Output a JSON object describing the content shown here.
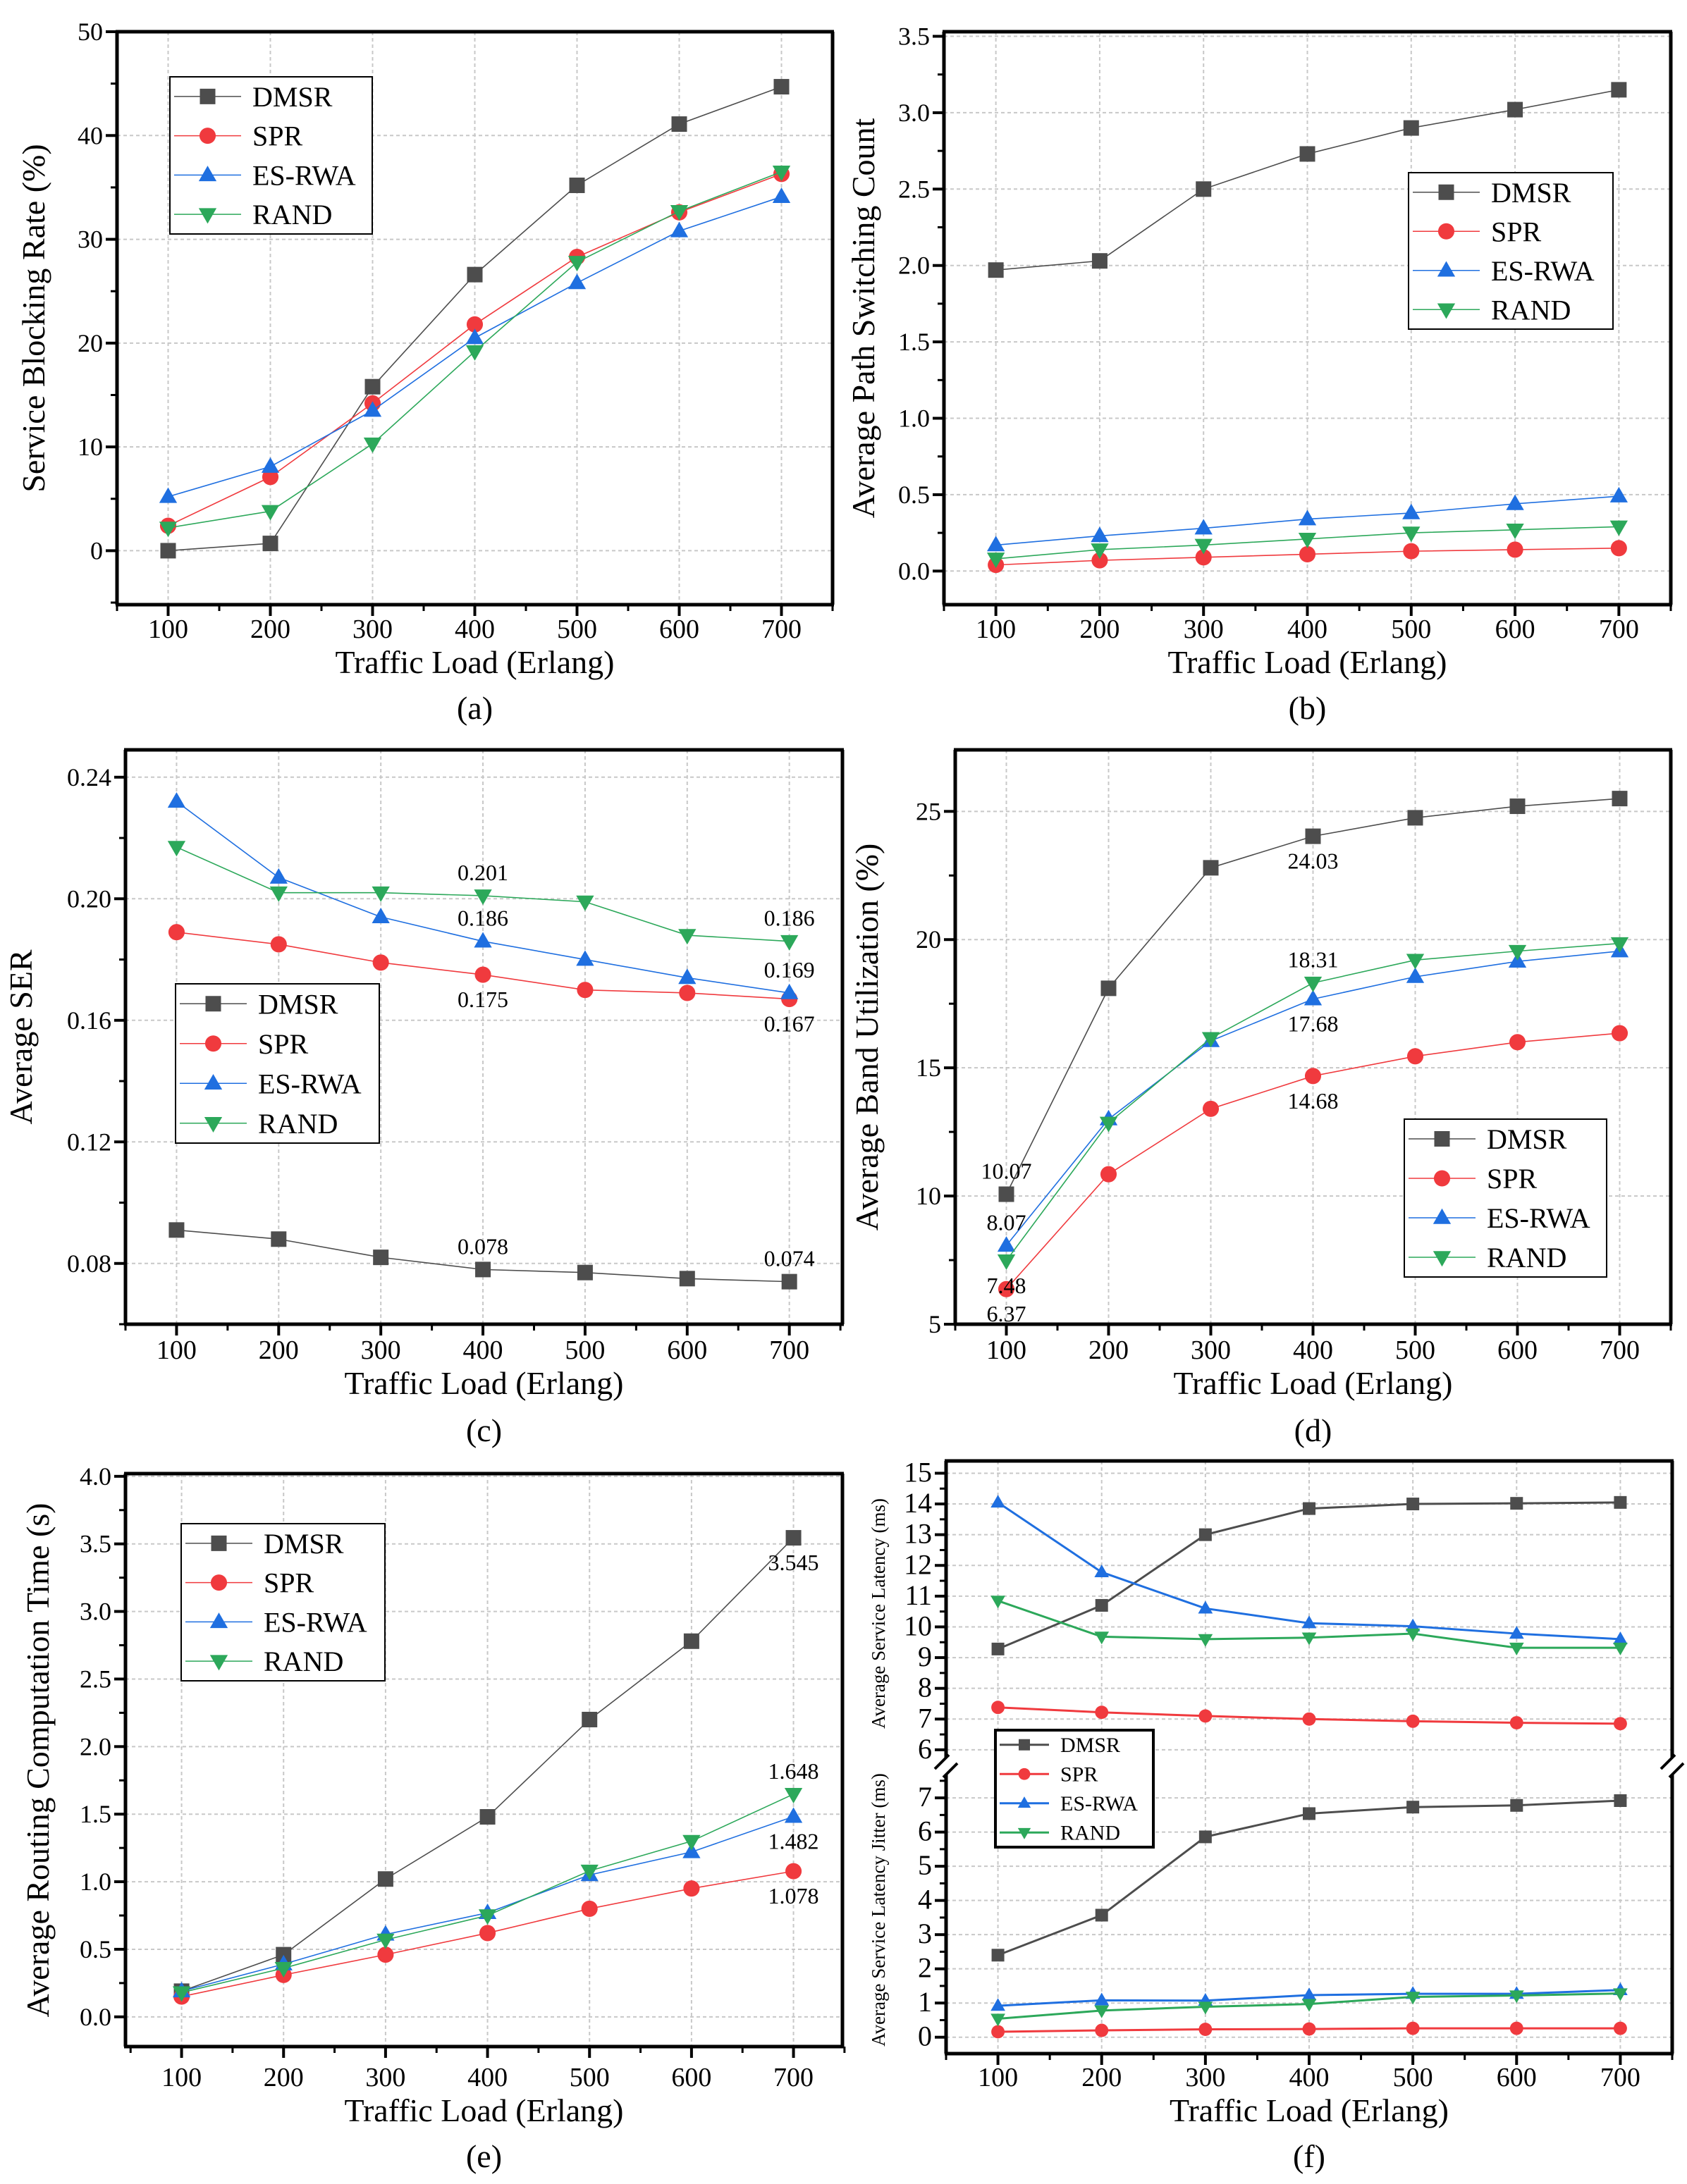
{
  "chart_data": [
    {
      "panel": "a",
      "type": "line",
      "caption": "(a)",
      "xlabel": "Traffic Load (Erlang)",
      "ylabel": "Service Blocking Rate (%)",
      "x": [
        100,
        200,
        300,
        400,
        500,
        600,
        700
      ],
      "xticks": [
        "100",
        "200",
        "300",
        "400",
        "500",
        "600",
        "700"
      ],
      "xlim": [
        50,
        750
      ],
      "ylim": [
        -5.2,
        50
      ],
      "yticks": [
        "0",
        "10",
        "20",
        "30",
        "40",
        "50"
      ],
      "grid": true,
      "legend": "top-left",
      "series": [
        {
          "name": "DMSR",
          "color": "#4d4d4d",
          "marker": "square",
          "values": [
            0,
            0.7,
            15.8,
            26.6,
            35.2,
            41.1,
            44.7
          ]
        },
        {
          "name": "SPR",
          "color": "#f03a3e",
          "marker": "circle",
          "values": [
            2.4,
            7.1,
            14.2,
            21.8,
            28.3,
            32.6,
            36.3
          ]
        },
        {
          "name": "ES-RWA",
          "color": "#1f6fe0",
          "marker": "triangle-up",
          "values": [
            5.2,
            8.1,
            13.5,
            20.5,
            25.8,
            30.8,
            34.1
          ]
        },
        {
          "name": "RAND",
          "color": "#2ca85a",
          "marker": "triangle-down",
          "values": [
            2.2,
            3.8,
            10.3,
            19.2,
            27.8,
            32.7,
            36.5
          ]
        }
      ],
      "annotations": []
    },
    {
      "panel": "b",
      "type": "line",
      "caption": "(b)",
      "xlabel": "Traffic Load (Erlang)",
      "ylabel": "Average Path Switching Count",
      "x": [
        100,
        200,
        300,
        400,
        500,
        600,
        700
      ],
      "xticks": [
        "100",
        "200",
        "300",
        "400",
        "500",
        "600",
        "700"
      ],
      "xlim": [
        50,
        750
      ],
      "ylim": [
        -0.22,
        3.53
      ],
      "yticks": [
        "0.0",
        "0.5",
        "1.0",
        "1.5",
        "2.0",
        "2.5",
        "3.0",
        "3.5"
      ],
      "grid": true,
      "legend": "right",
      "series": [
        {
          "name": "DMSR",
          "color": "#4d4d4d",
          "marker": "square",
          "values": [
            1.97,
            2.03,
            2.5,
            2.73,
            2.9,
            3.02,
            3.15
          ]
        },
        {
          "name": "SPR",
          "color": "#f03a3e",
          "marker": "circle",
          "values": [
            0.04,
            0.07,
            0.09,
            0.11,
            0.13,
            0.14,
            0.15
          ]
        },
        {
          "name": "ES-RWA",
          "color": "#1f6fe0",
          "marker": "triangle-up",
          "values": [
            0.17,
            0.23,
            0.28,
            0.34,
            0.38,
            0.44,
            0.49
          ]
        },
        {
          "name": "RAND",
          "color": "#2ca85a",
          "marker": "triangle-down",
          "values": [
            0.08,
            0.14,
            0.17,
            0.21,
            0.25,
            0.27,
            0.29
          ]
        }
      ],
      "annotations": []
    },
    {
      "panel": "c",
      "type": "line",
      "caption": "(c)",
      "xlabel": "Traffic Load (Erlang)",
      "ylabel": "Average SER",
      "x": [
        100,
        200,
        300,
        400,
        500,
        600,
        700
      ],
      "xticks": [
        "100",
        "200",
        "300",
        "400",
        "500",
        "600",
        "700"
      ],
      "xlim": [
        50,
        752
      ],
      "ylim": [
        0.06,
        0.249
      ],
      "yticks": [
        "0.08",
        "0.12",
        "0.16",
        "0.20",
        "0.24"
      ],
      "grid": true,
      "legend": "middle-left",
      "series": [
        {
          "name": "DMSR",
          "color": "#4d4d4d",
          "marker": "square",
          "values": [
            0.091,
            0.088,
            0.082,
            0.078,
            0.077,
            0.075,
            0.074
          ]
        },
        {
          "name": "SPR",
          "color": "#f03a3e",
          "marker": "circle",
          "values": [
            0.189,
            0.185,
            0.179,
            0.175,
            0.17,
            0.169,
            0.167
          ]
        },
        {
          "name": "ES-RWA",
          "color": "#1f6fe0",
          "marker": "triangle-up",
          "values": [
            0.232,
            0.207,
            0.194,
            0.186,
            0.18,
            0.174,
            0.169
          ]
        },
        {
          "name": "RAND",
          "color": "#2ca85a",
          "marker": "triangle-down",
          "values": [
            0.217,
            0.202,
            0.202,
            0.201,
            0.199,
            0.188,
            0.186
          ]
        }
      ],
      "annotations": [
        {
          "series": "RAND",
          "x": 400,
          "text": "0.201",
          "position": "above"
        },
        {
          "series": "ES-RWA",
          "x": 400,
          "text": "0.186",
          "position": "above"
        },
        {
          "series": "SPR",
          "x": 400,
          "text": "0.175",
          "position": "below"
        },
        {
          "series": "RAND",
          "x": 700,
          "text": "0.186",
          "position": "above"
        },
        {
          "series": "ES-RWA",
          "x": 700,
          "text": "0.169",
          "position": "above"
        },
        {
          "series": "SPR",
          "x": 700,
          "text": "0.167",
          "position": "below"
        },
        {
          "series": "DMSR",
          "x": 400,
          "text": "0.078",
          "position": "above"
        },
        {
          "series": "DMSR",
          "x": 700,
          "text": "0.074",
          "position": "above"
        }
      ]
    },
    {
      "panel": "d",
      "type": "line",
      "caption": "(d)",
      "xlabel": "Traffic Load (Erlang)",
      "ylabel": "Average Band Utilization (%)",
      "x": [
        100,
        200,
        300,
        400,
        500,
        600,
        700
      ],
      "xticks": [
        "100",
        "200",
        "300",
        "400",
        "500",
        "600",
        "700"
      ],
      "xlim": [
        50,
        750
      ],
      "ylim": [
        5,
        27.4
      ],
      "yticks": [
        "5",
        "10",
        "15",
        "20",
        "25"
      ],
      "grid": true,
      "legend": "bottom-right",
      "series": [
        {
          "name": "DMSR",
          "color": "#4d4d4d",
          "marker": "square",
          "values": [
            10.07,
            18.1,
            22.8,
            24.03,
            24.75,
            25.2,
            25.5
          ]
        },
        {
          "name": "SPR",
          "color": "#f03a3e",
          "marker": "circle",
          "values": [
            6.37,
            10.85,
            13.4,
            14.68,
            15.45,
            16.0,
            16.35
          ]
        },
        {
          "name": "ES-RWA",
          "color": "#1f6fe0",
          "marker": "triangle-up",
          "values": [
            8.07,
            13.0,
            16.05,
            17.68,
            18.55,
            19.15,
            19.55
          ]
        },
        {
          "name": "RAND",
          "color": "#2ca85a",
          "marker": "triangle-down",
          "values": [
            7.48,
            12.85,
            16.15,
            18.31,
            19.2,
            19.55,
            19.85
          ]
        }
      ],
      "annotations": [
        {
          "series": "DMSR",
          "x": 400,
          "text": "24.03",
          "position": "below"
        },
        {
          "series": "RAND",
          "x": 400,
          "text": "18.31",
          "position": "above"
        },
        {
          "series": "ES-RWA",
          "x": 400,
          "text": "17.68",
          "position": "below"
        },
        {
          "series": "SPR",
          "x": 400,
          "text": "14.68",
          "position": "below"
        },
        {
          "series": "DMSR",
          "x": 100,
          "text": "10.07",
          "position": "above"
        },
        {
          "series": "ES-RWA",
          "x": 100,
          "text": "8.07",
          "position": "above"
        },
        {
          "series": "RAND",
          "x": 100,
          "text": "7.48",
          "position": "below"
        },
        {
          "series": "SPR",
          "x": 100,
          "text": "6.37",
          "position": "below"
        }
      ]
    },
    {
      "panel": "e",
      "type": "line",
      "caption": "(e)",
      "xlabel": "Traffic Load (Erlang)",
      "ylabel": "Average Routing Computation Time (s)",
      "x": [
        100,
        200,
        300,
        400,
        500,
        600,
        700
      ],
      "xticks": [
        "100",
        "200",
        "300",
        "400",
        "500",
        "600",
        "700"
      ],
      "xlim": [
        45,
        748
      ],
      "ylim": [
        -0.22,
        4.02
      ],
      "yticks": [
        "0.0",
        "0.5",
        "1.0",
        "1.5",
        "2.0",
        "2.5",
        "3.0",
        "3.5",
        "4.0"
      ],
      "grid": true,
      "legend": "top-left",
      "series": [
        {
          "name": "DMSR",
          "color": "#4d4d4d",
          "marker": "square",
          "values": [
            0.19,
            0.46,
            1.02,
            1.48,
            2.2,
            2.78,
            3.545
          ]
        },
        {
          "name": "SPR",
          "color": "#f03a3e",
          "marker": "circle",
          "values": [
            0.15,
            0.31,
            0.46,
            0.62,
            0.8,
            0.95,
            1.078
          ]
        },
        {
          "name": "ES-RWA",
          "color": "#1f6fe0",
          "marker": "triangle-up",
          "values": [
            0.19,
            0.39,
            0.61,
            0.77,
            1.05,
            1.22,
            1.482
          ]
        },
        {
          "name": "RAND",
          "color": "#2ca85a",
          "marker": "triangle-down",
          "values": [
            0.18,
            0.36,
            0.57,
            0.75,
            1.08,
            1.3,
            1.648
          ]
        }
      ],
      "annotations": [
        {
          "series": "DMSR",
          "x": 700,
          "text": "3.545",
          "position": "below"
        },
        {
          "series": "RAND",
          "x": 700,
          "text": "1.648",
          "position": "above"
        },
        {
          "series": "ES-RWA",
          "x": 700,
          "text": "1.482",
          "position": "below"
        },
        {
          "series": "SPR",
          "x": 700,
          "text": "1.078",
          "position": "below"
        }
      ]
    },
    {
      "panel": "f",
      "type": "line",
      "caption": "(f)",
      "xlabel": "Traffic Load (Erlang)",
      "x": [
        100,
        200,
        300,
        400,
        500,
        600,
        700
      ],
      "xticks": [
        "100",
        "200",
        "300",
        "400",
        "500",
        "600",
        "700"
      ],
      "xlim": [
        50,
        750
      ],
      "grid": true,
      "legend": "middle-left",
      "axis_break": true,
      "legend_entries": [
        {
          "name": "DMSR",
          "color": "#4d4d4d",
          "marker": "square"
        },
        {
          "name": "SPR",
          "color": "#f03a3e",
          "marker": "circle"
        },
        {
          "name": "ES-RWA",
          "color": "#1f6fe0",
          "marker": "triangle-up"
        },
        {
          "name": "RAND",
          "color": "#2ca85a",
          "marker": "triangle-down"
        }
      ],
      "subplots": [
        {
          "ylabel": "Average Service Latency (ms)",
          "ylim": [
            5.47,
            15.4
          ],
          "yticks": [
            "6",
            "7",
            "8",
            "9",
            "10",
            "11",
            "12",
            "13",
            "14",
            "15"
          ],
          "series": [
            {
              "name": "DMSR",
              "color": "#4d4d4d",
              "marker": "square",
              "values": [
                9.28,
                10.7,
                13.0,
                13.85,
                14.0,
                14.02,
                14.05
              ]
            },
            {
              "name": "SPR",
              "color": "#f03a3e",
              "marker": "circle",
              "values": [
                7.38,
                7.22,
                7.1,
                7.0,
                6.93,
                6.88,
                6.85
              ]
            },
            {
              "name": "ES-RWA",
              "color": "#1f6fe0",
              "marker": "triangle-up",
              "values": [
                14.05,
                11.78,
                10.6,
                10.12,
                10.02,
                9.78,
                9.6
              ]
            },
            {
              "name": "RAND",
              "color": "#2ca85a",
              "marker": "triangle-down",
              "values": [
                10.85,
                9.68,
                9.6,
                9.65,
                9.78,
                9.32,
                9.32
              ]
            }
          ]
        },
        {
          "ylabel": "Average Service Latency Jitter (ms)",
          "ylim": [
            -0.48,
            7.93
          ],
          "yticks": [
            "0",
            "1",
            "2",
            "3",
            "4",
            "5",
            "6",
            "7"
          ],
          "series": [
            {
              "name": "DMSR",
              "color": "#4d4d4d",
              "marker": "square",
              "values": [
                2.4,
                3.57,
                5.86,
                6.54,
                6.73,
                6.78,
                6.92
              ]
            },
            {
              "name": "SPR",
              "color": "#f03a3e",
              "marker": "circle",
              "values": [
                0.16,
                0.2,
                0.23,
                0.24,
                0.26,
                0.26,
                0.26
              ]
            },
            {
              "name": "ES-RWA",
              "color": "#1f6fe0",
              "marker": "triangle-up",
              "values": [
                0.92,
                1.08,
                1.07,
                1.23,
                1.27,
                1.27,
                1.38
              ]
            },
            {
              "name": "RAND",
              "color": "#2ca85a",
              "marker": "triangle-down",
              "values": [
                0.54,
                0.78,
                0.89,
                0.97,
                1.18,
                1.22,
                1.28
              ]
            }
          ]
        }
      ],
      "annotations": []
    }
  ]
}
